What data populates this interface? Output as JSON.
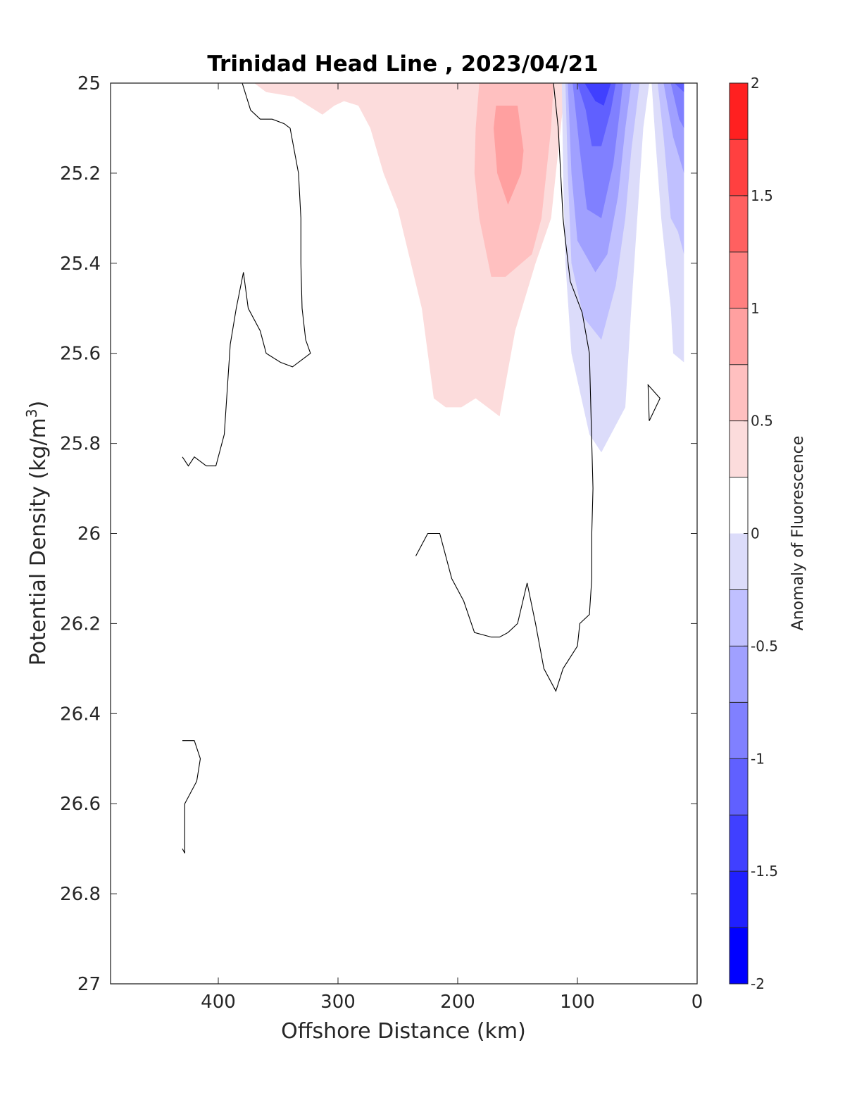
{
  "chart_data": {
    "type": "heatmap",
    "subtype": "filled-contour",
    "title": "Trinidad Head Line , 2023/04/21",
    "xlabel": "Offshore Distance (km)",
    "ylabel": "Potential Density (kg/m",
    "ylabel_sup": "3",
    "ylabel_close": ")",
    "xlim": [
      490,
      0
    ],
    "ylim": [
      25,
      27
    ],
    "x_reversed": true,
    "y_reversed": true,
    "xticks": [
      400,
      300,
      200,
      100,
      0
    ],
    "xtick_labels": [
      "400",
      "300",
      "200",
      "100",
      "0"
    ],
    "yticks": [
      25,
      25.2,
      25.4,
      25.6,
      25.8,
      26,
      26.2,
      26.4,
      26.6,
      26.8,
      27
    ],
    "ytick_labels": [
      "25",
      "25.2",
      "25.4",
      "25.6",
      "25.8",
      "26",
      "26.2",
      "26.4",
      "26.6",
      "26.8",
      "27"
    ],
    "colorbar": {
      "label": "Anomaly of Fluorescence",
      "clim": [
        -2,
        2
      ],
      "levels": [
        -2,
        -1.75,
        -1.5,
        -1.25,
        -1,
        -0.75,
        -0.5,
        -0.25,
        0.25,
        0.5,
        0.75,
        1,
        1.25,
        1.5,
        1.75,
        2
      ],
      "colors": [
        "#0000ff",
        "#2020ff",
        "#4040ff",
        "#6060ff",
        "#8080ff",
        "#a0a0ff",
        "#c0c0ff",
        "#dcdcfa",
        "#ffffff",
        "#fcdcdc",
        "#ffc0c0",
        "#ffa0a0",
        "#ff8080",
        "#ff6060",
        "#ff4040",
        "#ff2020",
        "#ff0000"
      ],
      "bands": [
        {
          "from": -2,
          "to": -1.75,
          "color": "#0000ff"
        },
        {
          "from": -1.75,
          "to": -1.5,
          "color": "#2020ff"
        },
        {
          "from": -1.5,
          "to": -1.25,
          "color": "#4040ff"
        },
        {
          "from": -1.25,
          "to": -1,
          "color": "#6060ff"
        },
        {
          "from": -1,
          "to": -0.75,
          "color": "#8080ff"
        },
        {
          "from": -0.75,
          "to": -0.5,
          "color": "#a0a0ff"
        },
        {
          "from": -0.5,
          "to": -0.25,
          "color": "#c0c0ff"
        },
        {
          "from": -0.25,
          "to": 0,
          "color": "#dcdcfa"
        },
        {
          "from": 0,
          "to": 0.25,
          "color": "#ffffff"
        },
        {
          "from": 0.25,
          "to": 0.5,
          "color": "#fcdcdc"
        },
        {
          "from": 0.5,
          "to": 0.75,
          "color": "#ffc0c0"
        },
        {
          "from": 0.75,
          "to": 1,
          "color": "#ffa0a0"
        },
        {
          "from": 1,
          "to": 1.25,
          "color": "#ff8080"
        },
        {
          "from": 1.25,
          "to": 1.5,
          "color": "#ff6060"
        },
        {
          "from": 1.5,
          "to": 1.75,
          "color": "#ff4040"
        },
        {
          "from": 1.75,
          "to": 2,
          "color": "#ff2020"
        }
      ],
      "ticks": [
        -2,
        -1.5,
        -1,
        -0.5,
        0,
        0.5,
        1,
        1.5,
        2
      ],
      "tick_labels": [
        "-2",
        "-1.5",
        "-1",
        "-0.5",
        "0",
        "0.5",
        "1",
        "1.5",
        "2"
      ]
    },
    "filled_regions": [
      {
        "level": 0.25,
        "color": "#fcdcdc",
        "points": [
          [
            370,
            25.0
          ],
          [
            110,
            25.0
          ],
          [
            114,
            25.1
          ],
          [
            118,
            25.2
          ],
          [
            122,
            25.3
          ],
          [
            135,
            25.4
          ],
          [
            152,
            25.55
          ],
          [
            165,
            25.74
          ],
          [
            175,
            25.72
          ],
          [
            185,
            25.7
          ],
          [
            197,
            25.72
          ],
          [
            210,
            25.72
          ],
          [
            220,
            25.7
          ],
          [
            230,
            25.5
          ],
          [
            250,
            25.28
          ],
          [
            262,
            25.2
          ],
          [
            273,
            25.1
          ],
          [
            283,
            25.05
          ],
          [
            295,
            25.04
          ],
          [
            303,
            25.05
          ],
          [
            313,
            25.07
          ],
          [
            325,
            25.05
          ],
          [
            337,
            25.03
          ],
          [
            360,
            25.02
          ]
        ]
      },
      {
        "level": 0.25,
        "color": "#fcdcdc",
        "points": [
          [
            216,
            25.0
          ],
          [
            190,
            25.0
          ],
          [
            203,
            25.06
          ]
        ]
      },
      {
        "level": 0.5,
        "color": "#ffc0c0",
        "points": [
          [
            182,
            25.0
          ],
          [
            120,
            25.0
          ],
          [
            122,
            25.1
          ],
          [
            126,
            25.2
          ],
          [
            130,
            25.3
          ],
          [
            138,
            25.38
          ],
          [
            160,
            25.43
          ],
          [
            172,
            25.43
          ],
          [
            182,
            25.3
          ],
          [
            186,
            25.2
          ],
          [
            185,
            25.1
          ]
        ]
      },
      {
        "level": 0.75,
        "color": "#ffa0a0",
        "points": [
          [
            168,
            25.05
          ],
          [
            150,
            25.05
          ],
          [
            145,
            25.15
          ],
          [
            147,
            25.2
          ],
          [
            158,
            25.27
          ],
          [
            167,
            25.2
          ],
          [
            170,
            25.1
          ]
        ]
      },
      {
        "level": -0.25,
        "color": "#dcdcfa",
        "points": [
          [
            113,
            25.0
          ],
          [
            112,
            25.2
          ],
          [
            110,
            25.4
          ],
          [
            105,
            25.6
          ],
          [
            95,
            25.72
          ],
          [
            90,
            25.78
          ],
          [
            80,
            25.82
          ],
          [
            60,
            25.72
          ],
          [
            55,
            25.5
          ],
          [
            50,
            25.3
          ],
          [
            45,
            25.1
          ],
          [
            40,
            25.0
          ]
        ]
      },
      {
        "level": -0.25,
        "color": "#dcdcfa",
        "points": [
          [
            38,
            25.0
          ],
          [
            35,
            25.12
          ],
          [
            30,
            25.3
          ],
          [
            22,
            25.5
          ],
          [
            20,
            25.6
          ],
          [
            11,
            25.62
          ],
          [
            11,
            25.0
          ]
        ]
      },
      {
        "level": -0.5,
        "color": "#c0c0ff",
        "points": [
          [
            110,
            25.0
          ],
          [
            108,
            25.2
          ],
          [
            105,
            25.4
          ],
          [
            95,
            25.52
          ],
          [
            80,
            25.57
          ],
          [
            68,
            25.45
          ],
          [
            60,
            25.3
          ],
          [
            55,
            25.15
          ],
          [
            48,
            25.0
          ]
        ]
      },
      {
        "level": -0.5,
        "color": "#c0c0ff",
        "points": [
          [
            33,
            25.0
          ],
          [
            28,
            25.12
          ],
          [
            22,
            25.3
          ],
          [
            16,
            25.33
          ],
          [
            11,
            25.38
          ],
          [
            11,
            25.0
          ]
        ]
      },
      {
        "level": -0.75,
        "color": "#a0a0ff",
        "points": [
          [
            108,
            25.0
          ],
          [
            105,
            25.2
          ],
          [
            100,
            25.35
          ],
          [
            85,
            25.42
          ],
          [
            75,
            25.38
          ],
          [
            66,
            25.25
          ],
          [
            60,
            25.1
          ],
          [
            55,
            25.0
          ]
        ]
      },
      {
        "level": -0.75,
        "color": "#a0a0ff",
        "points": [
          [
            28,
            25.0
          ],
          [
            20,
            25.12
          ],
          [
            11,
            25.2
          ],
          [
            11,
            25.0
          ]
        ]
      },
      {
        "level": -1,
        "color": "#8080ff",
        "points": [
          [
            104,
            25.0
          ],
          [
            98,
            25.15
          ],
          [
            92,
            25.28
          ],
          [
            80,
            25.3
          ],
          [
            70,
            25.18
          ],
          [
            64,
            25.05
          ],
          [
            62,
            25.0
          ]
        ]
      },
      {
        "level": -1,
        "color": "#8080ff",
        "points": [
          [
            22,
            25.0
          ],
          [
            15,
            25.08
          ],
          [
            11,
            25.1
          ],
          [
            11,
            25.0
          ]
        ]
      },
      {
        "level": -1.25,
        "color": "#6060ff",
        "points": [
          [
            100,
            25.0
          ],
          [
            93,
            25.06
          ],
          [
            88,
            25.14
          ],
          [
            80,
            25.14
          ],
          [
            72,
            25.06
          ],
          [
            68,
            25.0
          ]
        ]
      },
      {
        "level": -1.25,
        "color": "#6060ff",
        "points": [
          [
            19,
            25.0
          ],
          [
            11,
            25.02
          ],
          [
            11,
            25.0
          ]
        ]
      },
      {
        "level": -1.5,
        "color": "#4040ff",
        "points": [
          [
            94,
            25.0
          ],
          [
            85,
            25.04
          ],
          [
            78,
            25.05
          ],
          [
            72,
            25.0
          ]
        ]
      }
    ],
    "zero_contour_lines": [
      [
        [
          380,
          25.0
        ],
        [
          373,
          25.06
        ],
        [
          365,
          25.08
        ],
        [
          355,
          25.08
        ],
        [
          345,
          25.09
        ],
        [
          340,
          25.1
        ],
        [
          333,
          25.2
        ],
        [
          331,
          25.3
        ],
        [
          331,
          25.4
        ],
        [
          330,
          25.5
        ],
        [
          327,
          25.57
        ],
        [
          323,
          25.6
        ],
        [
          338,
          25.63
        ],
        [
          348,
          25.62
        ],
        [
          360,
          25.6
        ],
        [
          365,
          25.55
        ],
        [
          375,
          25.5
        ],
        [
          379,
          25.42
        ],
        [
          385,
          25.5
        ],
        [
          390,
          25.58
        ],
        [
          393,
          25.7
        ],
        [
          395,
          25.78
        ],
        [
          402,
          25.85
        ],
        [
          410,
          25.85
        ],
        [
          420,
          25.83
        ],
        [
          425,
          25.85
        ],
        [
          430,
          25.83
        ]
      ],
      [
        [
          120,
          25.0
        ],
        [
          116,
          25.1
        ],
        [
          113,
          25.25
        ],
        [
          112,
          25.3
        ],
        [
          110,
          25.35
        ],
        [
          106,
          25.44
        ],
        [
          96,
          25.51
        ],
        [
          90,
          25.6
        ],
        [
          89,
          25.7
        ],
        [
          88,
          25.8
        ],
        [
          87,
          25.9
        ],
        [
          88,
          26.0
        ],
        [
          88,
          26.1
        ],
        [
          90,
          26.18
        ],
        [
          98,
          26.2
        ],
        [
          100,
          26.25
        ],
        [
          112,
          26.3
        ],
        [
          118,
          26.35
        ],
        [
          128,
          26.3
        ],
        [
          135,
          26.2
        ],
        [
          142,
          26.11
        ],
        [
          150,
          26.2
        ],
        [
          158,
          26.22
        ],
        [
          165,
          26.23
        ],
        [
          172,
          26.23
        ],
        [
          186,
          26.22
        ],
        [
          195,
          26.15
        ],
        [
          205,
          26.1
        ],
        [
          215,
          26.0
        ],
        [
          225,
          26.0
        ],
        [
          235,
          26.05
        ]
      ],
      [
        [
          430,
          26.46
        ],
        [
          420,
          26.46
        ],
        [
          415,
          26.5
        ],
        [
          418,
          26.55
        ],
        [
          428,
          26.6
        ],
        [
          428,
          26.71
        ],
        [
          430,
          26.7
        ]
      ],
      [
        [
          40,
          25.75
        ],
        [
          41,
          25.67
        ],
        [
          31,
          25.7
        ],
        [
          40,
          25.75
        ]
      ]
    ]
  }
}
